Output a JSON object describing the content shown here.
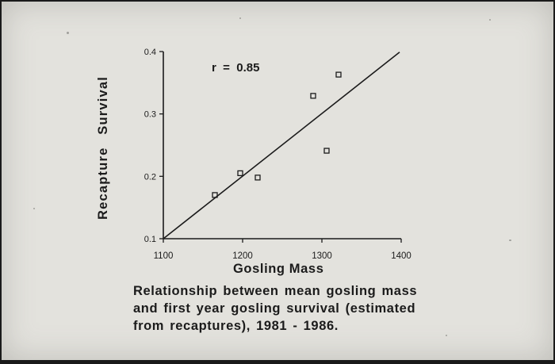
{
  "chart_data": {
    "type": "scatter",
    "xlabel": "Gosling Mass",
    "ylabel": "Recapture Survival",
    "xlim": [
      1100,
      1400
    ],
    "ylim": [
      0.1,
      0.4
    ],
    "x_ticks": [
      1100,
      1200,
      1300,
      1400
    ],
    "x_tick_labels": [
      "1100",
      "1200",
      "1300",
      "1400"
    ],
    "y_ticks": [
      0.1,
      0.2,
      0.3,
      0.4
    ],
    "y_tick_labels": [
      "0.1",
      "0.2",
      "0.3",
      "0.4"
    ],
    "points": [
      {
        "x": 1165,
        "y": 0.17
      },
      {
        "x": 1197,
        "y": 0.205
      },
      {
        "x": 1219,
        "y": 0.198
      },
      {
        "x": 1289,
        "y": 0.329
      },
      {
        "x": 1306,
        "y": 0.241
      },
      {
        "x": 1321,
        "y": 0.363
      }
    ],
    "regression_line": {
      "x": [
        1100,
        1398
      ],
      "y": [
        0.1,
        0.399
      ]
    },
    "annotation": "r  =  0.85",
    "grid": false,
    "marker": "open-square"
  },
  "caption": {
    "line1": "Relationship between mean gosling mass",
    "line2": "and first year gosling survival (estimated",
    "line3": "from recaptures), 1981 - 1986."
  },
  "colors": {
    "background": "#e3e2dd",
    "ink": "#1b1b1b",
    "frame": "#1a1a1a"
  }
}
